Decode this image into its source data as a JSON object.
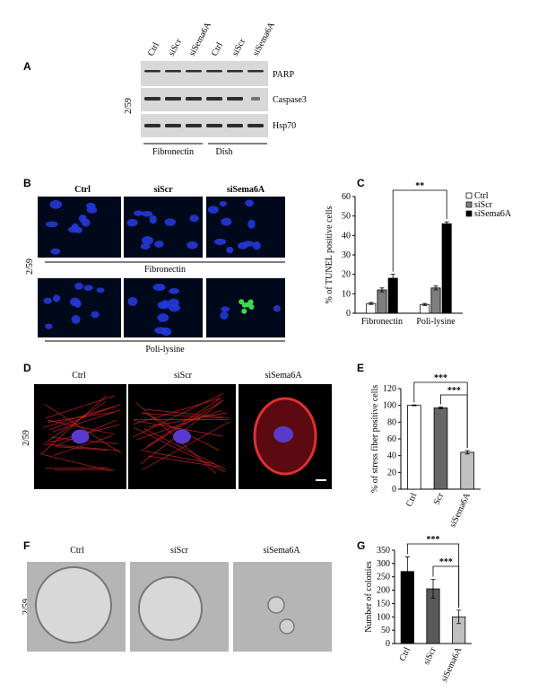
{
  "panel_a": {
    "label": "A",
    "side_label": "2/59",
    "lanes": [
      "Ctrl",
      "siScr",
      "siSema6A",
      "Ctrl",
      "siScr",
      "siSema6A"
    ],
    "bands": [
      "PARP",
      "Caspase3",
      "Hsp70"
    ],
    "groups": [
      "Fibronectin",
      "Dish"
    ]
  },
  "panel_b": {
    "label": "B",
    "side_label": "2/59",
    "columns": [
      "Ctrl",
      "siScr",
      "siSema6A"
    ],
    "rows": [
      "Fibronectin",
      "Poli-lysine"
    ]
  },
  "panel_d": {
    "label": "D",
    "side_label": "2/59",
    "columns": [
      "Ctrl",
      "siScr",
      "siSema6A"
    ]
  },
  "panel_f": {
    "label": "F",
    "side_label": "2/59",
    "columns": [
      "Ctrl",
      "siScr",
      "siSema6A"
    ]
  },
  "chart_data": [
    {
      "type": "grouped_bar",
      "panel": "C",
      "ylabel": "% of TUNEL positive cells",
      "categories": [
        "Fibronectin",
        "Poli-lysine"
      ],
      "series": [
        {
          "name": "Ctrl",
          "color": "#ffffff",
          "values": [
            5,
            4.5
          ],
          "errors": [
            0.5,
            0.5
          ]
        },
        {
          "name": "siScr",
          "color": "#7f7f7f",
          "values": [
            12,
            13
          ],
          "errors": [
            1,
            1
          ]
        },
        {
          "name": "siSema6A",
          "color": "#000000",
          "values": [
            18,
            46
          ],
          "errors": [
            2,
            1
          ]
        }
      ],
      "ylim": [
        0,
        60
      ],
      "yticks": [
        0,
        10,
        20,
        30,
        40,
        50,
        60
      ],
      "annotations": [
        "**"
      ]
    },
    {
      "type": "bar",
      "panel": "E",
      "ylabel": "% of stress fiber positive cells",
      "categories": [
        "Ctrl",
        "Scr",
        "siSema6A"
      ],
      "values": [
        100,
        97,
        44
      ],
      "errors": [
        0.5,
        1,
        2
      ],
      "colors": [
        "#ffffff",
        "#666666",
        "#c0c0c0"
      ],
      "ylim": [
        0,
        120
      ],
      "yticks": [
        0,
        20,
        40,
        60,
        80,
        100,
        120
      ],
      "annotations": [
        "***",
        "***"
      ]
    },
    {
      "type": "bar",
      "panel": "G",
      "ylabel": "Number of colonies",
      "categories": [
        "Ctrl",
        "siScr",
        "siSema6A"
      ],
      "values": [
        270,
        205,
        100
      ],
      "errors": [
        55,
        35,
        25
      ],
      "colors": [
        "#000000",
        "#595959",
        "#bfbfbf"
      ],
      "ylim": [
        0,
        350
      ],
      "yticks": [
        0,
        50,
        100,
        150,
        200,
        250,
        300,
        350
      ],
      "annotations": [
        "***",
        "***"
      ]
    }
  ]
}
